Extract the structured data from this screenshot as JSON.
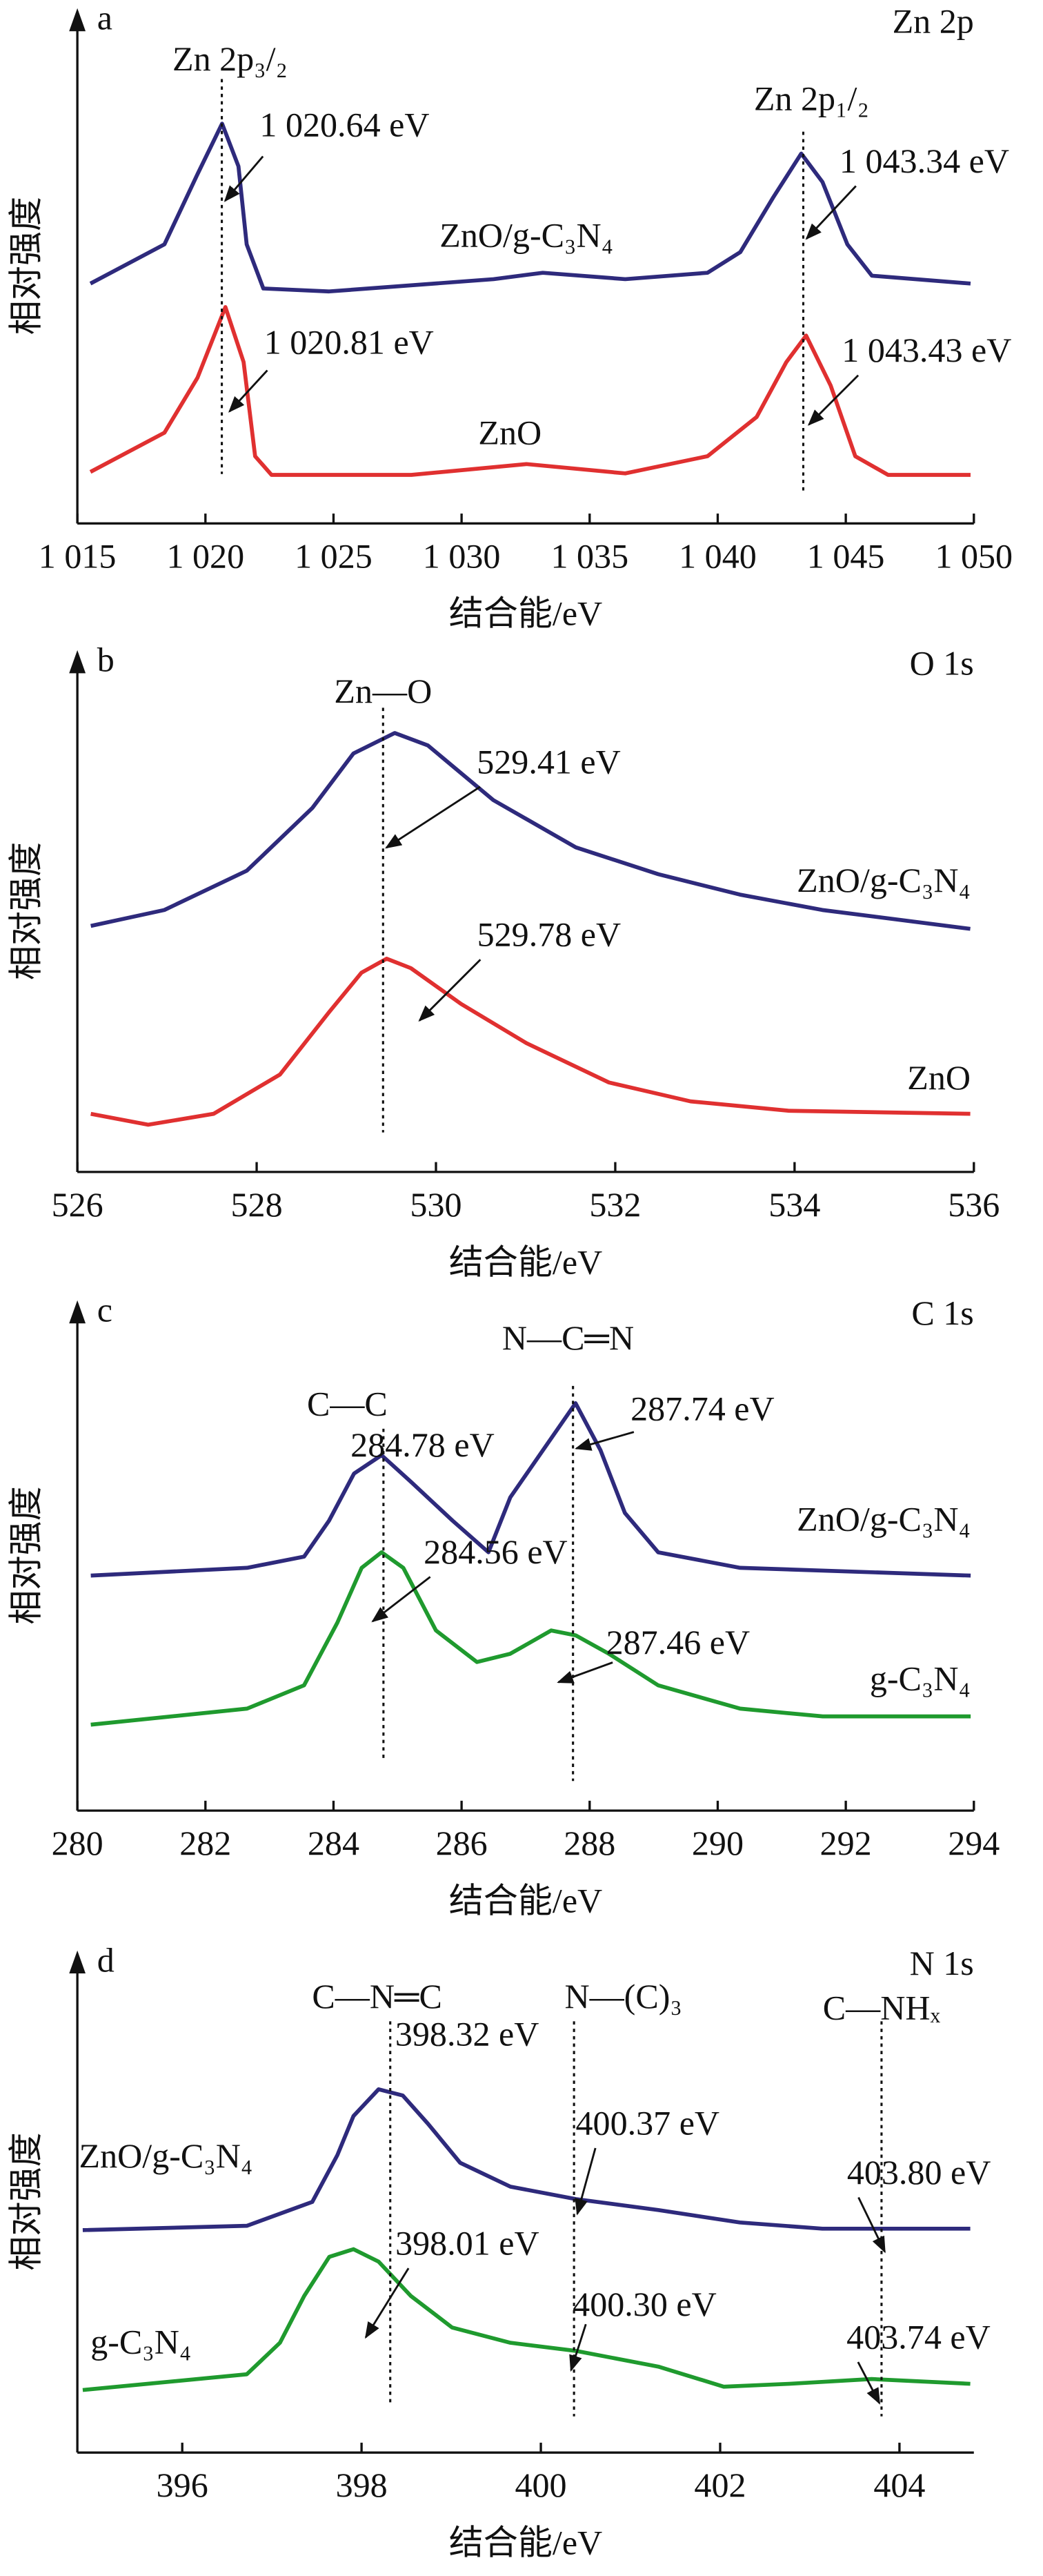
{
  "chart_data": [
    {
      "type": "line",
      "panel": "a",
      "title": "Zn 2p",
      "xlabel": "结合能/eV",
      "ylabel": "相对强度",
      "xlim": [
        1015,
        1050
      ],
      "xticks": [
        {
          "value": 1015,
          "label": "1 015"
        },
        {
          "value": 1020,
          "label": "1 020"
        },
        {
          "value": 1025,
          "label": "1 025"
        },
        {
          "value": 1030,
          "label": "1 030"
        },
        {
          "value": 1035,
          "label": "1 035"
        },
        {
          "value": 1040,
          "label": "1 040"
        },
        {
          "value": 1045,
          "label": "1 045"
        },
        {
          "value": 1050,
          "label": "1 050"
        }
      ],
      "ylim": [
        0,
        100
      ],
      "series": [
        {
          "name": "ZnO/g-C₃N₄",
          "color": "#2e2a7c",
          "x": [
            1015.51,
            1018.4,
            1019.69,
            1020.65,
            1021.29,
            1021.61,
            1022.26,
            1024.83,
            1031.25,
            1033.17,
            1036.39,
            1039.6,
            1040.88,
            1042.17,
            1043.26,
            1044.09,
            1045.06,
            1046.02,
            1049.87
          ],
          "values": [
            48.9,
            56.9,
            71.2,
            81.5,
            72.8,
            56.9,
            47.9,
            47.3,
            49.8,
            51.1,
            49.8,
            51.1,
            55.3,
            66.5,
            75.4,
            69.6,
            56.9,
            50.5,
            48.9
          ]
        },
        {
          "name": "ZnO",
          "color": "#e03030",
          "x": [
            1015.51,
            1018.4,
            1019.69,
            1020.78,
            1021.49,
            1021.94,
            1022.58,
            1028.04,
            1032.53,
            1036.39,
            1039.6,
            1041.52,
            1042.68,
            1043.45,
            1044.41,
            1045.37,
            1046.65,
            1049.87
          ],
          "values": [
            10.5,
            18.5,
            29.7,
            44.1,
            32.9,
            13.7,
            9.9,
            9.9,
            12.1,
            10.2,
            13.7,
            21.7,
            32.9,
            38.3,
            28.1,
            13.7,
            9.9,
            9.9
          ]
        }
      ],
      "peaks": [
        {
          "label": "Zn 2p₃/₂",
          "annotations": [
            {
              "value": 1020.64,
              "label": "1 020.64 eV"
            },
            {
              "value": 1020.81,
              "label": "1 020.81 eV"
            }
          ]
        },
        {
          "label": "Zn 2p₁/₂",
          "annotations": [
            {
              "value": 1043.34,
              "label": "1 043.34 eV"
            },
            {
              "value": 1043.43,
              "label": "1 043.43 eV"
            }
          ]
        }
      ]
    },
    {
      "type": "line",
      "panel": "b",
      "title": "O 1s",
      "xlabel": "结合能/eV",
      "ylabel": "相对强度",
      "xlim": [
        526,
        536
      ],
      "xticks": [
        526,
        528,
        530,
        532,
        534,
        536
      ],
      "ylim": [
        0,
        100
      ],
      "series": [
        {
          "name": "ZnO/g-C₃N₄",
          "color": "#2e2a7c",
          "x": [
            526.15,
            526.97,
            527.89,
            528.62,
            529.08,
            529.54,
            529.91,
            530.64,
            531.56,
            532.48,
            533.39,
            534.31,
            535.96
          ],
          "values": [
            49.5,
            52.7,
            60.6,
            73.2,
            84.2,
            88.3,
            85.8,
            74.8,
            65.3,
            59.9,
            55.8,
            52.7,
            48.9
          ]
        },
        {
          "name": "ZnO",
          "color": "#e03030",
          "x": [
            526.15,
            526.79,
            527.52,
            528.26,
            528.81,
            529.17,
            529.45,
            529.72,
            530.28,
            531.01,
            531.93,
            532.84,
            533.94,
            535.96
          ],
          "values": [
            11.7,
            9.5,
            11.7,
            19.6,
            32.2,
            40.1,
            42.9,
            41.0,
            33.8,
            25.9,
            18.0,
            14.2,
            12.3,
            11.7
          ]
        }
      ],
      "peaks": [
        {
          "label": "Zn—O",
          "annotations": [
            {
              "value": 529.41,
              "label": "529.41 eV"
            },
            {
              "value": 529.78,
              "label": "529.78 eV"
            }
          ]
        }
      ]
    },
    {
      "type": "line",
      "panel": "c",
      "title": "C 1s",
      "xlabel": "结合能/eV",
      "ylabel": "相对强度",
      "xlim": [
        280,
        294
      ],
      "xticks": [
        280,
        282,
        284,
        286,
        288,
        290,
        292,
        294
      ],
      "ylim": [
        0,
        100
      ],
      "series": [
        {
          "name": "ZnO/g-C₃N₄",
          "color": "#2e2a7c",
          "x": [
            280.21,
            282.65,
            283.54,
            283.93,
            284.32,
            284.75,
            285.21,
            285.86,
            286.42,
            286.76,
            287.27,
            287.78,
            288.17,
            288.55,
            289.07,
            290.35,
            293.95
          ],
          "values": [
            48.4,
            50.0,
            52.3,
            59.7,
            69.4,
            73.2,
            67.7,
            59.7,
            53.2,
            64.5,
            74.2,
            83.9,
            74.2,
            61.3,
            53.2,
            50.0,
            48.4
          ]
        },
        {
          "name": "g-C₃N₄",
          "color": "#1f9a2e",
          "x": [
            280.21,
            282.65,
            283.54,
            284.06,
            284.44,
            284.75,
            285.09,
            285.6,
            286.24,
            286.76,
            287.4,
            287.78,
            288.3,
            289.07,
            290.35,
            291.64,
            293.95
          ],
          "values": [
            17.7,
            21.0,
            25.8,
            38.7,
            50.0,
            53.2,
            50.0,
            37.1,
            30.6,
            32.3,
            37.1,
            36.1,
            32.3,
            25.8,
            21.0,
            19.4,
            19.4
          ]
        }
      ],
      "peaks": [
        {
          "label": "C—C",
          "annotations": [
            {
              "value": 284.78,
              "label": "284.78 eV"
            },
            {
              "value": 284.56,
              "label": "284.56 eV"
            }
          ]
        },
        {
          "label": "N—C═N",
          "annotations": [
            {
              "value": 287.74,
              "label": "287.74 eV"
            },
            {
              "value": 287.46,
              "label": "287.46 eV"
            }
          ]
        }
      ]
    },
    {
      "type": "line",
      "panel": "d",
      "title": "N 1s",
      "xlabel": "结合能/eV",
      "ylabel": "相对强度",
      "xlim": [
        394.83,
        404.83
      ],
      "xticks": [
        396,
        398,
        400,
        402,
        404
      ],
      "ylim": [
        0,
        100
      ],
      "series": [
        {
          "name": "ZnO/g-C₃N₄",
          "color": "#2e2a7c",
          "x": [
            394.89,
            396.72,
            397.45,
            397.73,
            397.91,
            398.19,
            398.46,
            398.74,
            399.1,
            399.66,
            400.39,
            401.31,
            402.22,
            403.14,
            404.79
          ],
          "values": [
            46.6,
            47.5,
            52.5,
            62.3,
            70.5,
            76.1,
            74.8,
            68.9,
            60.7,
            55.7,
            53.1,
            50.8,
            48.2,
            46.9,
            46.9
          ]
        },
        {
          "name": "g-C₃N₄",
          "color": "#1f9a2e",
          "x": [
            394.89,
            396.72,
            397.09,
            397.36,
            397.64,
            397.91,
            398.19,
            398.55,
            399.01,
            399.66,
            400.39,
            401.31,
            402.04,
            402.77,
            403.69,
            404.79
          ],
          "values": [
            13.1,
            16.4,
            23.0,
            32.8,
            41.0,
            42.6,
            40.0,
            32.8,
            26.2,
            23.0,
            21.3,
            18.0,
            13.8,
            14.4,
            15.4,
            14.4
          ]
        }
      ],
      "peaks": [
        {
          "label": "C—N═C",
          "annotations": [
            {
              "value": 398.32,
              "label": "398.32 eV"
            },
            {
              "value": 398.01,
              "label": "398.01 eV"
            }
          ]
        },
        {
          "label": "N—(C)₃",
          "annotations": [
            {
              "value": 400.37,
              "label": "400.37 eV"
            },
            {
              "value": 400.3,
              "label": "400.30 eV"
            }
          ]
        },
        {
          "label": "C—NHₓ",
          "annotations": [
            {
              "value": 403.8,
              "label": "403.80 eV"
            },
            {
              "value": 403.74,
              "label": "403.74 eV"
            }
          ]
        }
      ]
    }
  ]
}
